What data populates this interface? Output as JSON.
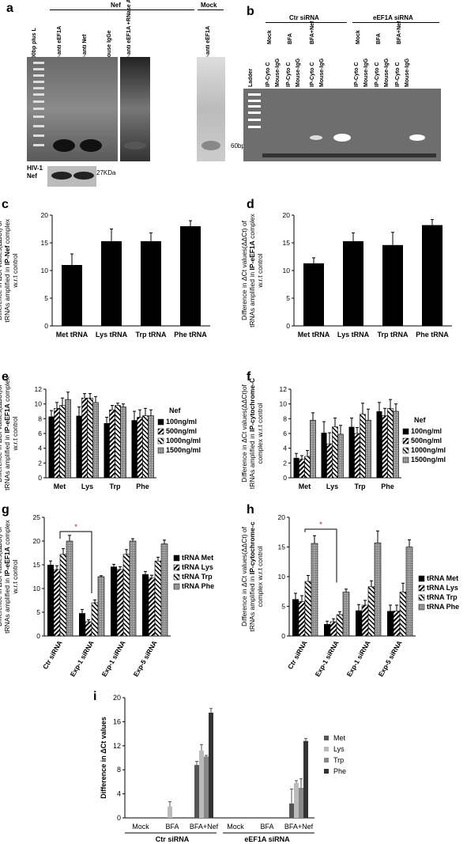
{
  "panels": {
    "a": "a",
    "b": "b",
    "c": "c",
    "d": "d",
    "e": "e",
    "f": "f",
    "g": "g",
    "h": "h",
    "i": "i"
  },
  "gel_a": {
    "group_nef": "Nef",
    "group_mock": "Mock",
    "lanes": [
      "100bp plus L",
      "IP-anti eEF1A",
      "IP-anti Nef",
      "Mouse IgGe",
      "IP-anti eEF1A +RNase A",
      "IP-anti eEF1A"
    ],
    "marker": "60bp",
    "wb_label": "HIV-1 Nef",
    "wb_marker": "27KDa"
  },
  "gel_b": {
    "group_ctr": "Ctr siRNA",
    "group_eef": "eEF1A siRNA",
    "sub_labels": [
      "Mock",
      "BFA",
      "BFA+Nef",
      "Mock",
      "BFA",
      "BFA+Nef"
    ],
    "lanes": [
      "Ladder",
      "IP-Cyto C",
      "Mouse-IgG",
      "IP-Cyto C",
      "Mouse-IgG",
      "IP-Cyto C",
      "Mouse-IgG",
      "IP-Cyto C",
      "Mouse-IgG",
      "IP-Cyto C",
      "Mouse-IgG",
      "IP-Cyto C",
      "Mouse-IgG"
    ]
  },
  "chart_data": [
    {
      "id": "c",
      "type": "bar",
      "ylabel_pre": "Difference in ΔCt values(ΔΔCt) of tRNAs amplified in ",
      "ylabel_bold": "IP-Nef",
      "ylabel_post": " complex w.r.t control",
      "categories": [
        "Met tRNA",
        "Lys tRNA",
        "Trp tRNA",
        "Phe tRNA"
      ],
      "values": [
        11,
        15.3,
        15.3,
        18
      ],
      "errors": [
        2,
        2.2,
        1.5,
        1
      ],
      "ylim": [
        0,
        20
      ],
      "yticks": [
        0,
        5,
        10,
        15,
        20
      ],
      "colors": [
        "#000000"
      ]
    },
    {
      "id": "d",
      "type": "bar",
      "ylabel_pre": "Difference in ΔCt values(ΔΔCt) of tRNAs amplified in ",
      "ylabel_bold": "IP-eEF1A",
      "ylabel_post": " complex w.r.t control",
      "categories": [
        "Met tRNA",
        "Lys tRNA",
        "Trp tRNA",
        "Phe tRNA"
      ],
      "values": [
        11.3,
        15.3,
        14.6,
        18.2
      ],
      "errors": [
        1,
        1.5,
        2.3,
        1
      ],
      "ylim": [
        0,
        20
      ],
      "yticks": [
        0,
        5,
        10,
        15,
        20
      ],
      "colors": [
        "#000000"
      ]
    },
    {
      "id": "e",
      "type": "bar",
      "ylabel_pre": "Difference in ΔCt values(ΔΔCt)of tRNAs amplified in ",
      "ylabel_bold": "IP-eEF1A",
      "ylabel_post": " complex w.r.t control",
      "categories": [
        "Met",
        "Lys",
        "Trp",
        "Phe"
      ],
      "legend_title": "Nef",
      "series": [
        {
          "name": "100ng/ml",
          "values": [
            8.3,
            8.4,
            7.4,
            7.8
          ]
        },
        {
          "name": "500ng/ml",
          "values": [
            9.4,
            10.8,
            9.2,
            8.2
          ]
        },
        {
          "name": "1000ng/ml",
          "values": [
            9.8,
            10.8,
            9.8,
            8.4
          ]
        },
        {
          "name": "1500ng/ml",
          "values": [
            10.6,
            10.2,
            9.6,
            8.4
          ]
        }
      ],
      "errors": [
        [
          0.8,
          1.2,
          0.8,
          1.2
        ],
        [
          0.8,
          0.6,
          0.6,
          1
        ],
        [
          1,
          0.6,
          0.3,
          1
        ],
        [
          1,
          0.8,
          0.4,
          0.8
        ]
      ],
      "ylim": [
        0,
        12
      ],
      "yticks": [
        0,
        2,
        4,
        6,
        8,
        10,
        12
      ],
      "colors": [
        "#000000",
        "#ffffff",
        "#ffffff",
        "#999999"
      ],
      "patterns": [
        "solid",
        "bwhatch",
        "bwhatch2",
        "grey"
      ]
    },
    {
      "id": "f",
      "type": "bar",
      "ylabel_pre": "Difference in ΔCt values(ΔΔCt)of tRNAs amplified in ",
      "ylabel_bold": "IP-cytochrome-C",
      "ylabel_post": " complex w.r.t control",
      "categories": [
        "Met",
        "Lys",
        "Trp",
        "Phe"
      ],
      "legend_title": "Nef",
      "series": [
        {
          "name": "100ng/ml",
          "values": [
            2.7,
            6.1,
            6.9,
            9
          ]
        },
        {
          "name": "500ng/ml",
          "values": [
            2.5,
            4.6,
            6,
            8.4
          ]
        },
        {
          "name": "1000ng/ml",
          "values": [
            2.9,
            6.9,
            8.6,
            9.4
          ]
        },
        {
          "name": "1500ng/ml",
          "values": [
            7.8,
            5.9,
            7.8,
            9
          ]
        }
      ],
      "errors": [
        [
          0.6,
          1.5,
          1.2,
          1.2
        ],
        [
          0.5,
          1.5,
          0.8,
          1
        ],
        [
          0.8,
          1.2,
          1.5,
          1.2
        ],
        [
          1,
          1.2,
          1.5,
          1
        ]
      ],
      "ylim": [
        0,
        12
      ],
      "yticks": [
        0,
        2,
        4,
        6,
        8,
        10,
        12
      ],
      "colors": [
        "#000000",
        "#ffffff",
        "#ffffff",
        "#999999"
      ],
      "patterns": [
        "solid",
        "bwhatch",
        "bwhatch2",
        "grey"
      ]
    },
    {
      "id": "g",
      "type": "bar",
      "ylabel_pre": "Difference in ΔCt values(ΔΔCt) of tRNAs amplified in ",
      "ylabel_bold": "IP-eEF1A",
      "ylabel_post": " complex w.r.t control",
      "categories": [
        "Ctr siRNA",
        "Exp-1 siRNA",
        "Exp-1 siRNA",
        "Exp-5 siRNA"
      ],
      "series": [
        {
          "name": "tRNA Met",
          "values": [
            15,
            4.8,
            14.6,
            13
          ]
        },
        {
          "name": "tRNA Lys",
          "values": [
            14,
            3,
            14,
            12.2
          ]
        },
        {
          "name": "tRNA Trp",
          "values": [
            17.2,
            7,
            17.2,
            15.8
          ]
        },
        {
          "name": "tRNA Phe",
          "values": [
            20,
            12.5,
            20,
            19.4
          ]
        }
      ],
      "errors": [
        [
          0.8,
          0.8,
          0.5,
          0.6
        ],
        [
          0.8,
          0.4,
          0.6,
          0.6
        ],
        [
          1.2,
          0.6,
          1,
          0.8
        ],
        [
          1.2,
          0.2,
          0.5,
          0.8
        ]
      ],
      "ylim": [
        0,
        25
      ],
      "yticks": [
        0,
        5,
        10,
        15,
        20,
        25
      ],
      "significance": "*",
      "colors": [
        "#000000",
        "#ffffff",
        "#ffffff",
        "#999999"
      ],
      "patterns": [
        "solid",
        "bwhatch",
        "bwhatch2",
        "grey"
      ]
    },
    {
      "id": "h",
      "type": "bar",
      "ylabel_pre": "Difference in ΔCt values(ΔΔCt) of tRNAs amplified in ",
      "ylabel_bold": "IP-cytochrome-c",
      "ylabel_post": " complex w.r.t control",
      "categories": [
        "Ctr siRNA",
        "Exp-1 siRNA",
        "Exp-1 siRNA",
        "Exp-5 siRNA"
      ],
      "series": [
        {
          "name": "tRNA Met",
          "values": [
            6.2,
            2,
            4.3,
            4.2
          ]
        },
        {
          "name": "tRNA Lys",
          "values": [
            5.8,
            2.4,
            5.2,
            4.2
          ]
        },
        {
          "name": "tRNA Trp",
          "values": [
            9.2,
            3.6,
            8.3,
            7.4
          ]
        },
        {
          "name": "tRNA Phe",
          "values": [
            15.6,
            7.4,
            15.7,
            15
          ]
        }
      ],
      "errors": [
        [
          1,
          0.5,
          1,
          1
        ],
        [
          1,
          0.5,
          0.8,
          1
        ],
        [
          1,
          0.5,
          1,
          1.5
        ],
        [
          1.3,
          0.5,
          2,
          1.2
        ]
      ],
      "ylim": [
        0,
        20
      ],
      "yticks": [
        0,
        5,
        10,
        15,
        20
      ],
      "significance": "*",
      "colors": [
        "#000000",
        "#ffffff",
        "#ffffff",
        "#999999"
      ],
      "patterns": [
        "solid",
        "bwhatch",
        "bwhatch2",
        "grey"
      ]
    },
    {
      "id": "i",
      "type": "bar",
      "ylabel": "Difference in ΔCt values",
      "categories": [
        "Mock",
        "BFA",
        "BFA+Nef",
        "Mock",
        "BFA",
        "BFA+Nef"
      ],
      "groups": [
        "Ctr siRNA",
        "eEF1A siRNA"
      ],
      "series": [
        {
          "name": "Met",
          "values": [
            0,
            0,
            8.8,
            0,
            0,
            2.4
          ]
        },
        {
          "name": "Lys",
          "values": [
            0,
            1.9,
            11.2,
            0,
            0,
            5.8
          ]
        },
        {
          "name": "Trp",
          "values": [
            0,
            0,
            10.2,
            0,
            0,
            5
          ]
        },
        {
          "name": "Phe",
          "values": [
            0,
            0,
            17.5,
            0,
            0,
            12.8
          ]
        }
      ],
      "errors": [
        [
          0,
          0,
          0.6,
          0,
          0,
          2.4
        ],
        [
          0,
          0.8,
          1,
          0,
          0,
          0.4
        ],
        [
          0,
          0,
          0.2,
          0,
          0,
          1.5
        ],
        [
          0,
          0,
          0.7,
          0,
          0,
          0.4
        ]
      ],
      "ylim": [
        0,
        20
      ],
      "yticks": [
        0,
        4,
        8,
        12,
        16,
        20
      ],
      "colors": [
        "#555555",
        "#bbbbbb",
        "#888888",
        "#333333"
      ]
    }
  ]
}
